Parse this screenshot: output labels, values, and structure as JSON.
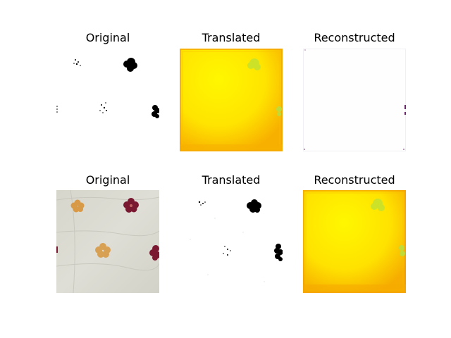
{
  "figure": {
    "rows": [
      {
        "panels": [
          {
            "title": "Original"
          },
          {
            "title": "Translated"
          },
          {
            "title": "Reconstructed"
          }
        ]
      },
      {
        "panels": [
          {
            "title": "Original"
          },
          {
            "title": "Translated"
          },
          {
            "title": "Reconstructed"
          }
        ]
      }
    ]
  },
  "colors": {
    "background": "#ffffff",
    "yellow_main": "#fff200",
    "yellow_edge": "#f5a800",
    "fabric": "#dcdbd3",
    "flower_orange": "#d89c4c",
    "flower_maroon": "#7c1a32",
    "flower_black": "#000000",
    "flower_green": "#c8e030"
  }
}
